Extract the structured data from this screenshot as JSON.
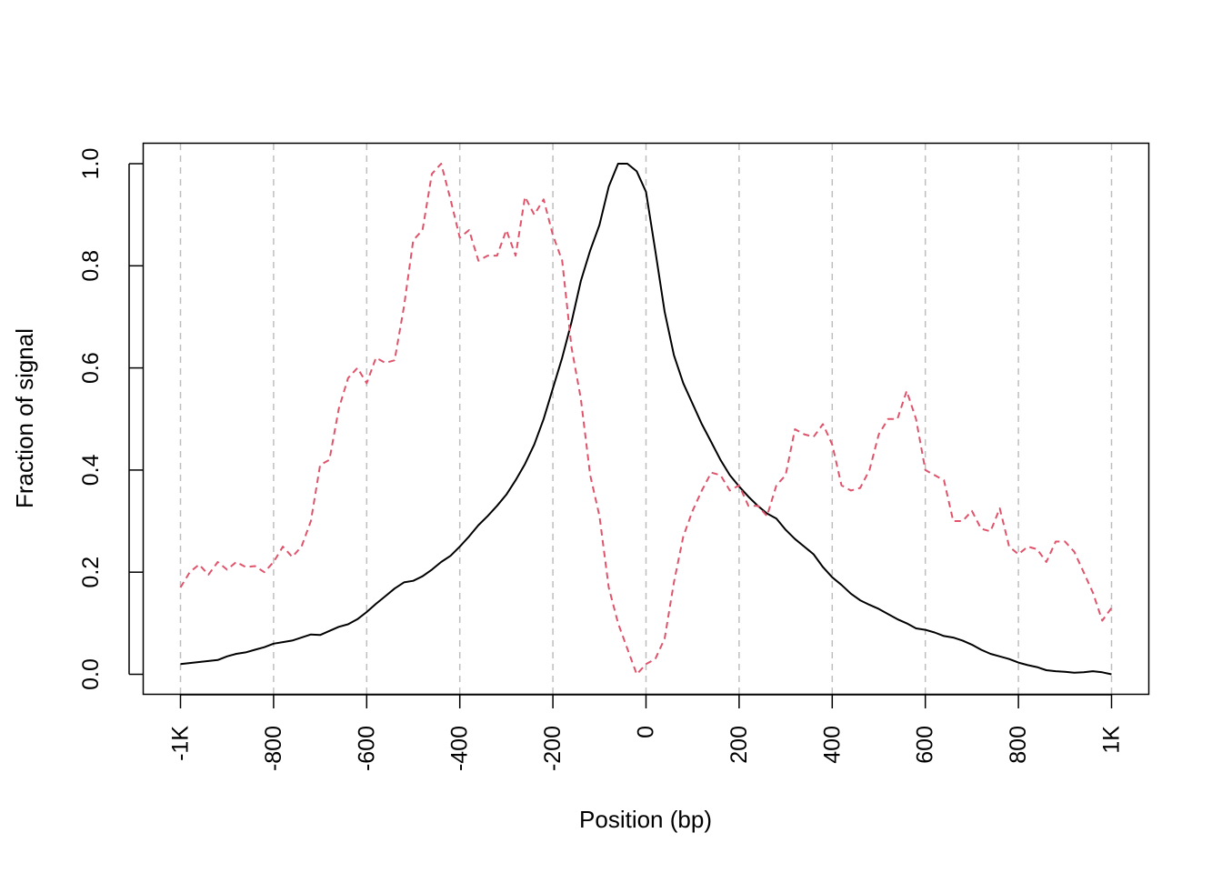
{
  "chart_data": {
    "type": "line",
    "title": "",
    "xlabel": "Position (bp)",
    "ylabel": "Fraction of signal",
    "xlim": [
      -1000,
      1000
    ],
    "ylim": [
      0,
      1
    ],
    "x_ticks": [
      -1000,
      -800,
      -600,
      -400,
      -200,
      0,
      200,
      400,
      600,
      800,
      1000
    ],
    "x_tick_labels": [
      "-1K",
      "-800",
      "-600",
      "-400",
      "-200",
      "0",
      "200",
      "400",
      "600",
      "800",
      "1K"
    ],
    "y_ticks": [
      0,
      0.2,
      0.4,
      0.6,
      0.8,
      1.0
    ],
    "y_tick_labels": [
      "0.0",
      "0.2",
      "0.4",
      "0.6",
      "0.8",
      "1.0"
    ],
    "grid": "vertical dashed at x ticks",
    "colors": {
      "series1": "#000000",
      "series2": "#df536b",
      "grid": "#bebebe"
    },
    "series": [
      {
        "style": "solid",
        "x": [
          -1000,
          -980,
          -960,
          -940,
          -920,
          -900,
          -880,
          -860,
          -840,
          -820,
          -800,
          -780,
          -760,
          -740,
          -720,
          -700,
          -680,
          -660,
          -640,
          -620,
          -600,
          -580,
          -560,
          -540,
          -520,
          -500,
          -480,
          -460,
          -440,
          -420,
          -400,
          -380,
          -360,
          -340,
          -320,
          -300,
          -280,
          -260,
          -240,
          -220,
          -200,
          -180,
          -160,
          -140,
          -120,
          -100,
          -80,
          -60,
          -40,
          -20,
          0,
          20,
          40,
          60,
          80,
          100,
          120,
          140,
          160,
          180,
          200,
          220,
          240,
          260,
          280,
          300,
          320,
          340,
          360,
          380,
          400,
          420,
          440,
          460,
          480,
          500,
          520,
          540,
          560,
          580,
          600,
          620,
          640,
          660,
          680,
          700,
          720,
          740,
          760,
          780,
          800,
          820,
          840,
          860,
          880,
          900,
          920,
          940,
          960,
          980,
          1000
        ],
        "values": [
          0.02,
          0.022,
          0.024,
          0.026,
          0.028,
          0.035,
          0.04,
          0.043,
          0.048,
          0.053,
          0.06,
          0.063,
          0.066,
          0.072,
          0.078,
          0.077,
          0.085,
          0.093,
          0.098,
          0.108,
          0.122,
          0.138,
          0.153,
          0.168,
          0.18,
          0.183,
          0.192,
          0.205,
          0.22,
          0.232,
          0.25,
          0.27,
          0.292,
          0.31,
          0.33,
          0.352,
          0.38,
          0.412,
          0.45,
          0.5,
          0.56,
          0.62,
          0.69,
          0.77,
          0.83,
          0.88,
          0.955,
          1.0,
          1.0,
          0.985,
          0.945,
          0.83,
          0.71,
          0.625,
          0.57,
          0.53,
          0.49,
          0.455,
          0.42,
          0.39,
          0.368,
          0.348,
          0.33,
          0.315,
          0.305,
          0.283,
          0.265,
          0.25,
          0.235,
          0.21,
          0.19,
          0.175,
          0.158,
          0.145,
          0.136,
          0.128,
          0.118,
          0.108,
          0.1,
          0.09,
          0.087,
          0.082,
          0.075,
          0.072,
          0.066,
          0.058,
          0.048,
          0.04,
          0.035,
          0.03,
          0.023,
          0.018,
          0.014,
          0.008,
          0.006,
          0.005,
          0.003,
          0.004,
          0.006,
          0.004,
          0.0
        ]
      },
      {
        "style": "dashed",
        "x": [
          -1000,
          -980,
          -960,
          -940,
          -920,
          -900,
          -880,
          -860,
          -840,
          -820,
          -800,
          -780,
          -760,
          -740,
          -720,
          -700,
          -680,
          -660,
          -640,
          -620,
          -600,
          -580,
          -560,
          -540,
          -520,
          -500,
          -480,
          -460,
          -440,
          -420,
          -400,
          -380,
          -360,
          -340,
          -320,
          -300,
          -280,
          -260,
          -240,
          -220,
          -200,
          -180,
          -160,
          -140,
          -120,
          -100,
          -80,
          -60,
          -40,
          -20,
          0,
          20,
          40,
          60,
          80,
          100,
          120,
          140,
          160,
          180,
          200,
          220,
          240,
          260,
          280,
          300,
          320,
          340,
          360,
          380,
          400,
          420,
          440,
          460,
          480,
          500,
          520,
          540,
          560,
          580,
          600,
          620,
          640,
          660,
          680,
          700,
          720,
          740,
          760,
          780,
          800,
          820,
          840,
          860,
          880,
          900,
          920,
          940,
          960,
          980,
          1000
        ],
        "values": [
          0.17,
          0.2,
          0.215,
          0.195,
          0.22,
          0.205,
          0.22,
          0.21,
          0.212,
          0.2,
          0.22,
          0.25,
          0.23,
          0.25,
          0.3,
          0.41,
          0.42,
          0.52,
          0.58,
          0.6,
          0.57,
          0.62,
          0.61,
          0.615,
          0.72,
          0.85,
          0.87,
          0.98,
          1.0,
          0.93,
          0.855,
          0.87,
          0.81,
          0.82,
          0.82,
          0.87,
          0.82,
          0.935,
          0.9,
          0.93,
          0.86,
          0.81,
          0.64,
          0.54,
          0.39,
          0.31,
          0.17,
          0.1,
          0.05,
          0.0,
          0.02,
          0.03,
          0.07,
          0.18,
          0.27,
          0.32,
          0.36,
          0.395,
          0.39,
          0.36,
          0.37,
          0.33,
          0.33,
          0.31,
          0.37,
          0.39,
          0.48,
          0.47,
          0.465,
          0.49,
          0.45,
          0.37,
          0.36,
          0.365,
          0.4,
          0.47,
          0.5,
          0.5,
          0.555,
          0.5,
          0.4,
          0.39,
          0.38,
          0.3,
          0.3,
          0.32,
          0.285,
          0.28,
          0.325,
          0.25,
          0.235,
          0.25,
          0.245,
          0.22,
          0.26,
          0.26,
          0.24,
          0.2,
          0.16,
          0.105,
          0.13
        ]
      }
    ]
  }
}
